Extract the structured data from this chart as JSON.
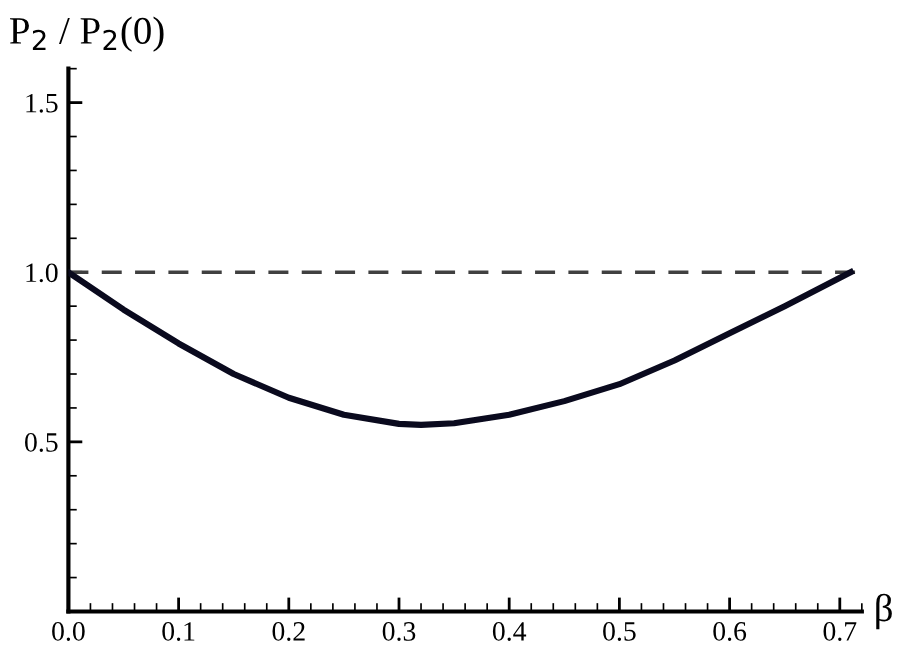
{
  "chart_data": {
    "type": "line",
    "xlabel": "β",
    "ylabel": "P$_{2}$ / P$_{2}$(0)",
    "x": [
      0,
      0.05,
      0.1,
      0.15,
      0.2,
      0.25,
      0.3,
      0.32,
      0.35,
      0.4,
      0.45,
      0.5,
      0.55,
      0.6,
      0.65,
      0.71
    ],
    "series": [
      {
        "color": "#0a0a1e",
        "values": [
          1.0,
          0.89,
          0.79,
          0.7,
          0.63,
          0.58,
          0.553,
          0.55,
          0.555,
          0.58,
          0.62,
          0.67,
          0.74,
          0.82,
          0.9,
          1.0
        ]
      }
    ],
    "xlim": [
      0,
      0.72
    ],
    "ylim": [
      0,
      1.6
    ],
    "xticks": [
      {
        "value": 0,
        "label": "0.0"
      },
      0.1,
      0.2,
      0.3,
      0.4,
      0.5,
      0.6,
      0.7
    ],
    "yticks": [
      0.5,
      {
        "value": 1,
        "label": "1.0"
      },
      1.5
    ],
    "ref_lines": [
      {
        "axis": "y",
        "value": 1,
        "color": "#404040",
        "line_style": "dashed"
      }
    ],
    "grid": false,
    "legend": false,
    "marker": "none",
    "line_style": "solid"
  }
}
